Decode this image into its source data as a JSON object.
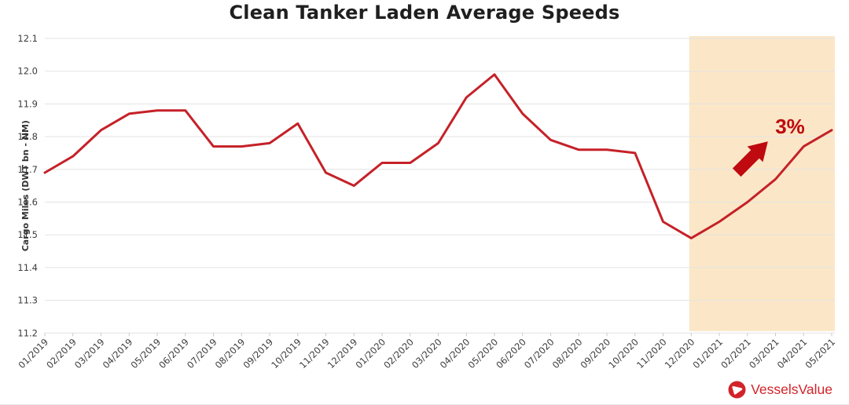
{
  "chart_data": {
    "type": "line",
    "title": "Clean Tanker Laden Average Speeds",
    "xlabel": "",
    "ylabel": "Cargo Miles (DWT bn - NM)",
    "categories": [
      "01/2019",
      "02/2019",
      "03/2019",
      "04/2019",
      "05/2019",
      "06/2019",
      "07/2019",
      "08/2019",
      "09/2019",
      "10/2019",
      "11/2019",
      "12/2019",
      "01/2020",
      "02/2020",
      "03/2020",
      "04/2020",
      "05/2020",
      "06/2020",
      "07/2020",
      "08/2020",
      "09/2020",
      "10/2020",
      "11/2020",
      "12/2020",
      "01/2021",
      "02/2021",
      "03/2021",
      "04/2021",
      "05/2021"
    ],
    "series": [
      {
        "name": "Clean Tanker Laden Average Speed",
        "color": "#c52128",
        "values": [
          11.69,
          11.74,
          11.82,
          11.87,
          11.88,
          11.88,
          11.77,
          11.77,
          11.78,
          11.84,
          11.69,
          11.65,
          11.72,
          11.72,
          11.78,
          11.92,
          11.99,
          11.87,
          11.79,
          11.76,
          11.76,
          11.75,
          11.54,
          11.49,
          11.54,
          11.6,
          11.67,
          11.77,
          11.82
        ]
      }
    ],
    "ylim": [
      11.2,
      12.1
    ],
    "y_ticks": [
      "12.1",
      "12.0",
      "11.9",
      "11.8",
      "11.7",
      "11.6",
      "11.5",
      "11.4",
      "11.3",
      "11.2"
    ],
    "grid": "horizontal",
    "legend": "none",
    "highlight_region": {
      "from": "12/2020",
      "to": "05/2021",
      "color": "#fbe7c7"
    },
    "annotation": {
      "text": "3%",
      "color": "#bf0a0f",
      "icon": "up-right-arrow",
      "near_category": "03/2021"
    }
  },
  "branding": {
    "logo_text": "VesselsValue",
    "logo_color": "#d2232a"
  },
  "style": {
    "gridline_color": "#e3e3e3",
    "tick_label_color": "#3d3d3d",
    "axis_label_color": "#333333",
    "title_color": "#1f1f1f"
  }
}
